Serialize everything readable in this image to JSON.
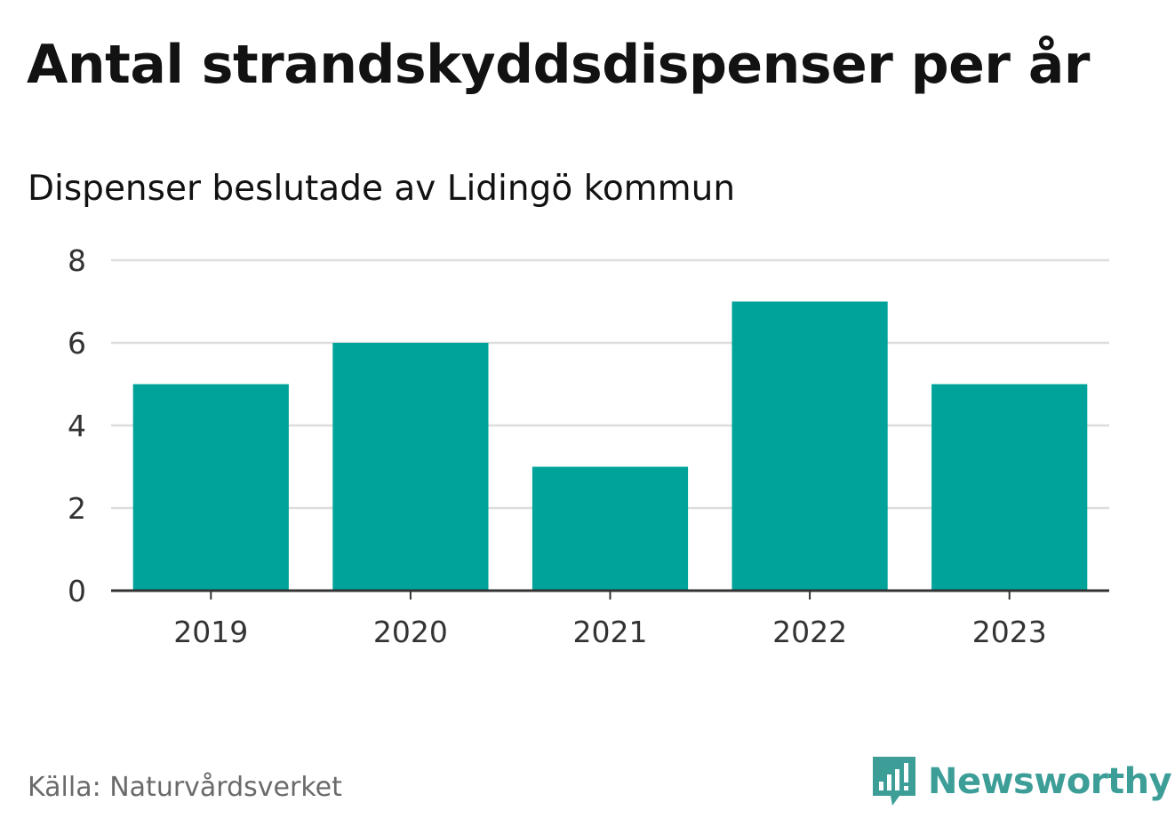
{
  "header": {
    "title": "Antal strandskyddsdispenser per år",
    "subtitle": "Dispenser beslutade av Lidingö kommun"
  },
  "footer": {
    "source": "Källa: Naturvårdsverket",
    "brand": "Newsworthy",
    "brand_icon": "newsworthy-logo-icon"
  },
  "colors": {
    "bar": "#00a39a",
    "brand": "#3d9e98",
    "grid": "#dddddd",
    "axis": "#333333"
  },
  "chart_data": {
    "type": "bar",
    "title": "Antal strandskyddsdispenser per år",
    "subtitle": "Dispenser beslutade av Lidingö kommun",
    "xlabel": "",
    "ylabel": "",
    "categories": [
      "2019",
      "2020",
      "2021",
      "2022",
      "2023"
    ],
    "values": [
      5,
      6,
      3,
      7,
      5
    ],
    "ylim": [
      0,
      8
    ],
    "yticks": [
      0,
      2,
      4,
      6,
      8
    ],
    "grid": true,
    "legend": "none"
  }
}
